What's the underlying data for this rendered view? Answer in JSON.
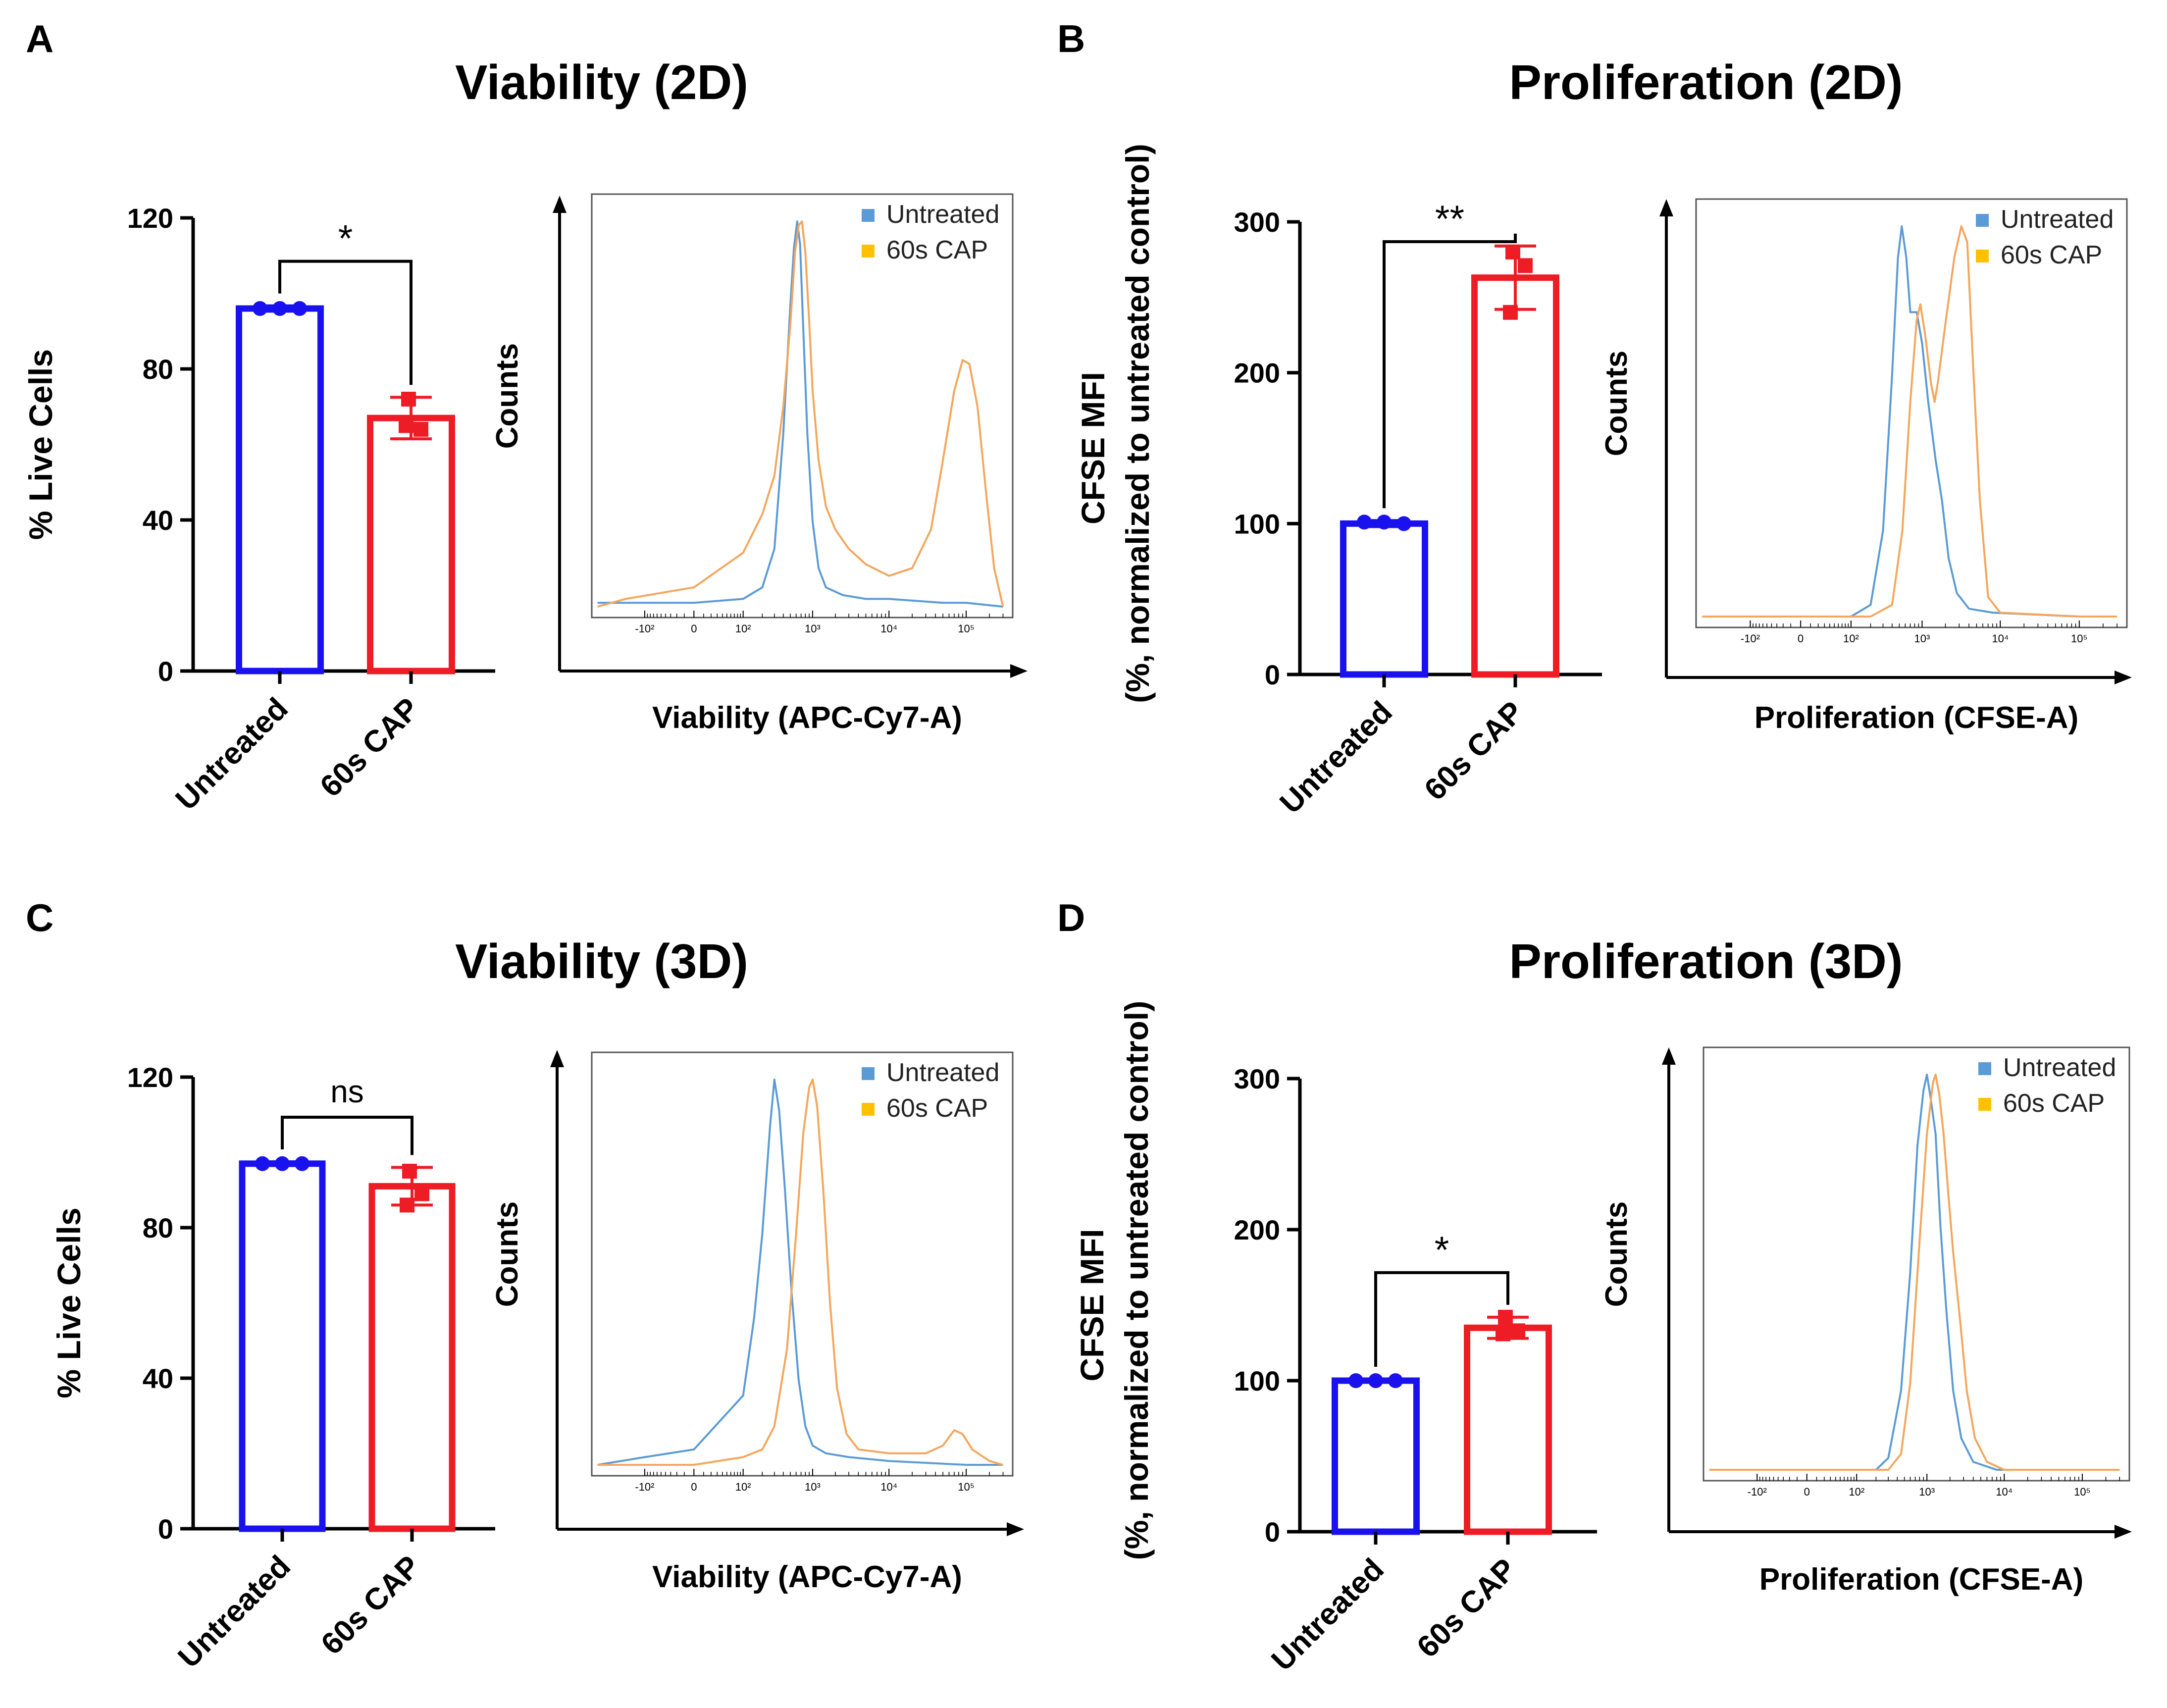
{
  "figure": {
    "colors": {
      "untreated_bar": "#1a12ee",
      "cap_bar": "#ee1c24",
      "untreated_hist": "#5b9bd5",
      "cap_hist": "#f4a65c",
      "legend_untreated": "#5b9bd5",
      "legend_cap": "#ffc000"
    }
  },
  "chart_data": [
    {
      "panel": "A",
      "type": "bar",
      "title": "Viability (2D)",
      "ylabel": "% Live Cells",
      "ylabel2": "",
      "ylim": [
        0,
        120
      ],
      "yticks": [
        0,
        40,
        80,
        120
      ],
      "categories": [
        "Untreated",
        "60s CAP"
      ],
      "values": [
        96,
        67
      ],
      "errors": [
        0.7,
        5.5
      ],
      "points": [
        [
          96,
          96,
          96
        ],
        [
          72,
          64,
          65
        ]
      ],
      "significance": "*"
    },
    {
      "panel": "A",
      "type": "histogram",
      "title": "",
      "xlabel": "Viability (APC-Cy7-A)",
      "ylabel": "Counts",
      "legend": [
        "Untreated",
        "60s CAP"
      ],
      "xticklabels": [
        "-10²",
        "0",
        "10²",
        "10³",
        "10⁴",
        "10⁵"
      ],
      "xticks": [
        -100,
        0,
        100,
        1000,
        10000,
        100000
      ],
      "series": [
        {
          "name": "Untreated",
          "points": [
            [
              -500,
              0.01
            ],
            [
              -200,
              0.01
            ],
            [
              0,
              0.01
            ],
            [
              100,
              0.02
            ],
            [
              200,
              0.05
            ],
            [
              300,
              0.15
            ],
            [
              400,
              0.45
            ],
            [
              500,
              0.78
            ],
            [
              560,
              0.93
            ],
            [
              620,
              1.0
            ],
            [
              680,
              0.94
            ],
            [
              750,
              0.72
            ],
            [
              850,
              0.45
            ],
            [
              1000,
              0.22
            ],
            [
              1200,
              0.1
            ],
            [
              1500,
              0.05
            ],
            [
              2500,
              0.03
            ],
            [
              5000,
              0.02
            ],
            [
              10000,
              0.02
            ],
            [
              50000,
              0.01
            ],
            [
              100000,
              0.01
            ],
            [
              300000,
              0.0
            ]
          ]
        },
        {
          "name": "60s CAP",
          "points": [
            [
              -500,
              0.0
            ],
            [
              -200,
              0.02
            ],
            [
              0,
              0.05
            ],
            [
              100,
              0.14
            ],
            [
              200,
              0.24
            ],
            [
              300,
              0.34
            ],
            [
              400,
              0.52
            ],
            [
              500,
              0.73
            ],
            [
              580,
              0.92
            ],
            [
              650,
              0.99
            ],
            [
              720,
              1.0
            ],
            [
              800,
              0.92
            ],
            [
              900,
              0.74
            ],
            [
              1000,
              0.56
            ],
            [
              1200,
              0.38
            ],
            [
              1500,
              0.26
            ],
            [
              2000,
              0.2
            ],
            [
              3000,
              0.15
            ],
            [
              5000,
              0.11
            ],
            [
              10000,
              0.08
            ],
            [
              20000,
              0.1
            ],
            [
              35000,
              0.2
            ],
            [
              50000,
              0.38
            ],
            [
              70000,
              0.56
            ],
            [
              90000,
              0.64
            ],
            [
              110000,
              0.63
            ],
            [
              140000,
              0.52
            ],
            [
              180000,
              0.3
            ],
            [
              230000,
              0.1
            ],
            [
              300000,
              0.0
            ]
          ]
        }
      ]
    },
    {
      "panel": "B",
      "type": "bar",
      "title": "Proliferation (2D)",
      "ylabel": "CFSE MFI",
      "ylabel2": "(%, normalized to untreated control)",
      "ylim": [
        0,
        300
      ],
      "yticks": [
        0,
        100,
        200,
        300
      ],
      "categories": [
        "Untreated",
        "60s CAP"
      ],
      "values": [
        100,
        263
      ],
      "errors": [
        2,
        21
      ],
      "points": [
        [
          101,
          101,
          100
        ],
        [
          280,
          271,
          240
        ]
      ],
      "significance": "**"
    },
    {
      "panel": "B",
      "type": "histogram",
      "title": "",
      "xlabel": "Proliferation (CFSE-A)",
      "ylabel": "Counts",
      "legend": [
        "Untreated",
        "60s CAP"
      ],
      "xticklabels": [
        "-10²",
        "0",
        "10²",
        "10³",
        "10⁴",
        "10⁵"
      ],
      "xticks": [
        -100,
        0,
        100,
        1000,
        10000,
        100000
      ],
      "series": [
        {
          "name": "Untreated",
          "points": [
            [
              -500,
              0.0
            ],
            [
              0,
              0.0
            ],
            [
              100,
              0.0
            ],
            [
              200,
              0.03
            ],
            [
              300,
              0.22
            ],
            [
              400,
              0.62
            ],
            [
              480,
              0.92
            ],
            [
              540,
              1.0
            ],
            [
              620,
              0.92
            ],
            [
              700,
              0.78
            ],
            [
              850,
              0.78
            ],
            [
              1000,
              0.7
            ],
            [
              1200,
              0.55
            ],
            [
              1500,
              0.4
            ],
            [
              1800,
              0.3
            ],
            [
              2200,
              0.15
            ],
            [
              2800,
              0.06
            ],
            [
              4000,
              0.02
            ],
            [
              8000,
              0.01
            ],
            [
              100000,
              0.0
            ],
            [
              300000,
              0.0
            ]
          ]
        },
        {
          "name": "60s CAP",
          "points": [
            [
              -500,
              0.0
            ],
            [
              0,
              0.0
            ],
            [
              200,
              0.0
            ],
            [
              400,
              0.03
            ],
            [
              550,
              0.22
            ],
            [
              700,
              0.55
            ],
            [
              850,
              0.76
            ],
            [
              950,
              0.8
            ],
            [
              1100,
              0.72
            ],
            [
              1300,
              0.6
            ],
            [
              1450,
              0.55
            ],
            [
              1600,
              0.6
            ],
            [
              2000,
              0.75
            ],
            [
              2600,
              0.92
            ],
            [
              3200,
              1.0
            ],
            [
              3800,
              0.96
            ],
            [
              4500,
              0.65
            ],
            [
              5500,
              0.3
            ],
            [
              7000,
              0.05
            ],
            [
              10000,
              0.01
            ],
            [
              100000,
              0.0
            ],
            [
              300000,
              0.0
            ]
          ]
        }
      ]
    },
    {
      "panel": "C",
      "type": "bar",
      "title": "Viability (3D)",
      "ylabel": "% Live Cells",
      "ylabel2": "",
      "ylim": [
        0,
        120
      ],
      "yticks": [
        0,
        40,
        80,
        120
      ],
      "categories": [
        "Untreated",
        "60s CAP"
      ],
      "values": [
        97,
        91
      ],
      "errors": [
        0.5,
        5
      ],
      "points": [
        [
          97,
          97,
          97
        ],
        [
          95,
          89,
          86
        ]
      ],
      "significance": "ns"
    },
    {
      "panel": "C",
      "type": "histogram",
      "title": "",
      "xlabel": "Viability (APC-Cy7-A)",
      "ylabel": "Counts",
      "legend": [
        "Untreated",
        "60s CAP"
      ],
      "xticklabels": [
        "-10²",
        "0",
        "10²",
        "10³",
        "10⁴",
        "10⁵"
      ],
      "xticks": [
        -100,
        0,
        100,
        1000,
        10000,
        100000
      ],
      "series": [
        {
          "name": "Untreated",
          "points": [
            [
              -500,
              0.0
            ],
            [
              -100,
              0.02
            ],
            [
              0,
              0.04
            ],
            [
              100,
              0.18
            ],
            [
              150,
              0.38
            ],
            [
              200,
              0.6
            ],
            [
              260,
              0.88
            ],
            [
              300,
              1.0
            ],
            [
              350,
              0.92
            ],
            [
              420,
              0.72
            ],
            [
              520,
              0.45
            ],
            [
              650,
              0.22
            ],
            [
              800,
              0.1
            ],
            [
              1000,
              0.05
            ],
            [
              1500,
              0.03
            ],
            [
              3000,
              0.02
            ],
            [
              10000,
              0.01
            ],
            [
              100000,
              0.0
            ],
            [
              300000,
              0.0
            ]
          ]
        },
        {
          "name": "60s CAP",
          "points": [
            [
              -500,
              0.0
            ],
            [
              0,
              0.0
            ],
            [
              100,
              0.02
            ],
            [
              200,
              0.04
            ],
            [
              300,
              0.1
            ],
            [
              450,
              0.3
            ],
            [
              600,
              0.6
            ],
            [
              750,
              0.86
            ],
            [
              900,
              0.98
            ],
            [
              1000,
              1.0
            ],
            [
              1150,
              0.93
            ],
            [
              1400,
              0.7
            ],
            [
              1700,
              0.42
            ],
            [
              2100,
              0.2
            ],
            [
              2800,
              0.08
            ],
            [
              4000,
              0.04
            ],
            [
              10000,
              0.03
            ],
            [
              30000,
              0.03
            ],
            [
              50000,
              0.05
            ],
            [
              70000,
              0.09
            ],
            [
              90000,
              0.08
            ],
            [
              120000,
              0.04
            ],
            [
              200000,
              0.01
            ],
            [
              300000,
              0.0
            ]
          ]
        }
      ]
    },
    {
      "panel": "D",
      "type": "bar",
      "title": "Proliferation (3D)",
      "ylabel": "CFSE MFI",
      "ylabel2": "(%, normalized to untreated control)",
      "ylim": [
        0,
        300
      ],
      "yticks": [
        0,
        100,
        200,
        300
      ],
      "categories": [
        "Untreated",
        "60s CAP"
      ],
      "values": [
        100,
        135
      ],
      "errors": [
        1,
        7
      ],
      "points": [
        [
          100,
          100,
          100
        ],
        [
          142,
          133,
          131
        ]
      ],
      "significance": "*"
    },
    {
      "panel": "D",
      "type": "histogram",
      "title": "",
      "xlabel": "Proliferation (CFSE-A)",
      "ylabel": "Counts",
      "legend": [
        "Untreated",
        "60s CAP"
      ],
      "xticklabels": [
        "-10²",
        "0",
        "10²",
        "10³",
        "10⁴",
        "10⁵"
      ],
      "xticks": [
        -100,
        0,
        100,
        1000,
        10000,
        100000
      ],
      "series": [
        {
          "name": "Untreated",
          "points": [
            [
              -500,
              0.0
            ],
            [
              0,
              0.0
            ],
            [
              200,
              0.0
            ],
            [
              300,
              0.03
            ],
            [
              450,
              0.2
            ],
            [
              600,
              0.5
            ],
            [
              750,
              0.82
            ],
            [
              900,
              0.96
            ],
            [
              1000,
              1.0
            ],
            [
              1100,
              0.95
            ],
            [
              1300,
              0.85
            ],
            [
              1500,
              0.62
            ],
            [
              1800,
              0.4
            ],
            [
              2200,
              0.2
            ],
            [
              2800,
              0.08
            ],
            [
              4000,
              0.02
            ],
            [
              8000,
              0.0
            ],
            [
              300000,
              0.0
            ]
          ]
        },
        {
          "name": "60s CAP",
          "points": [
            [
              -500,
              0.0
            ],
            [
              0,
              0.0
            ],
            [
              300,
              0.0
            ],
            [
              450,
              0.04
            ],
            [
              600,
              0.22
            ],
            [
              800,
              0.58
            ],
            [
              1000,
              0.85
            ],
            [
              1200,
              0.98
            ],
            [
              1300,
              1.0
            ],
            [
              1450,
              0.95
            ],
            [
              1650,
              0.85
            ],
            [
              1900,
              0.7
            ],
            [
              2200,
              0.55
            ],
            [
              2700,
              0.38
            ],
            [
              3300,
              0.2
            ],
            [
              4200,
              0.08
            ],
            [
              6000,
              0.02
            ],
            [
              10000,
              0.0
            ],
            [
              300000,
              0.0
            ]
          ]
        }
      ]
    }
  ]
}
